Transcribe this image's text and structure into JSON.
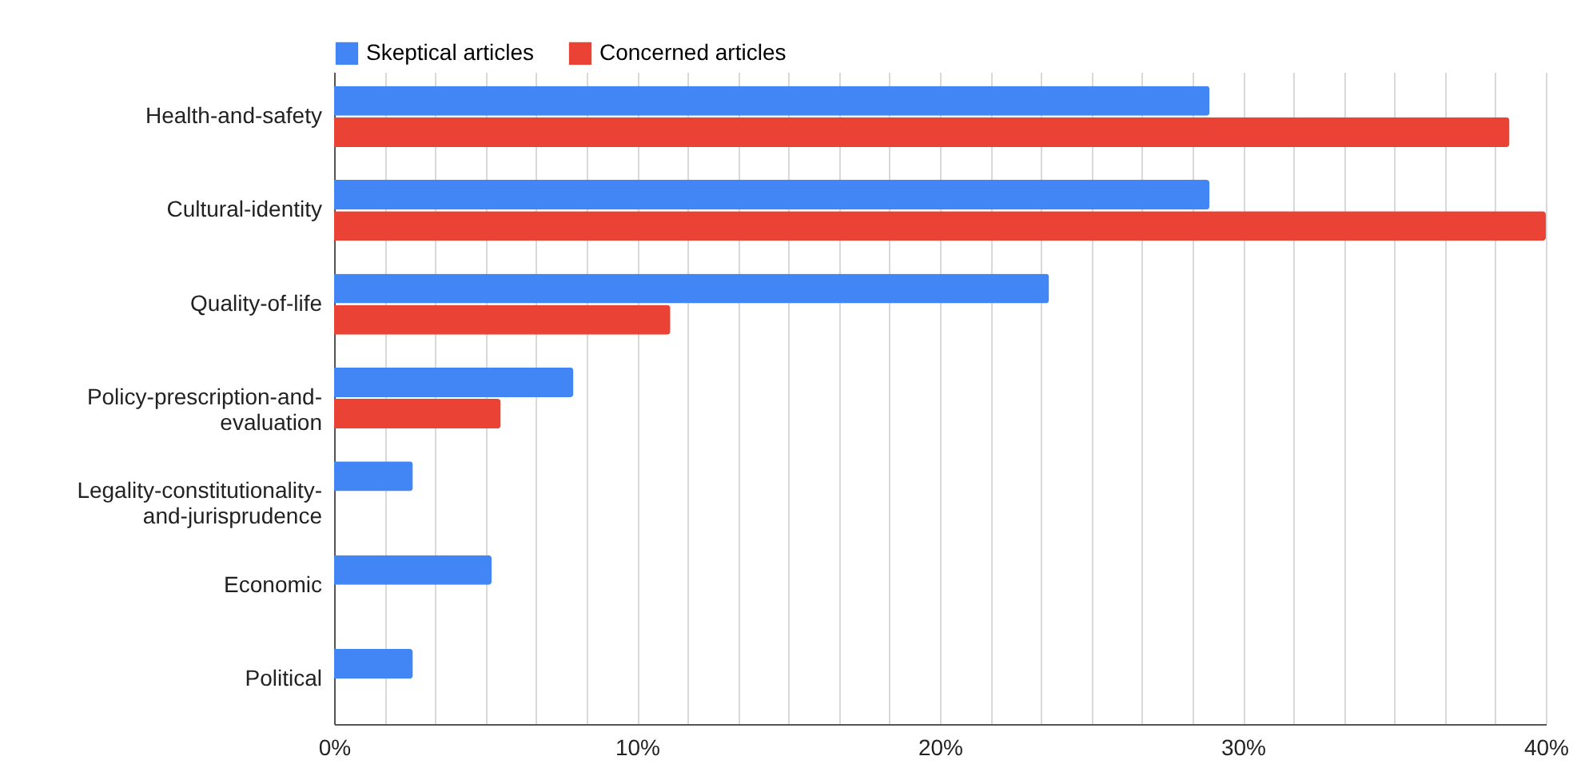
{
  "chart_data": {
    "type": "bar",
    "orientation": "horizontal",
    "categories": [
      "Health-and-safety",
      "Cultural-identity",
      "Quality-of-life",
      "Policy-prescription-and-evaluation",
      "Legality-constitutionality-and-jurisprudence",
      "Economic",
      "Political"
    ],
    "series": [
      {
        "name": "Skeptical articles",
        "color": "#4285f4",
        "values": [
          28.9,
          28.9,
          23.6,
          7.9,
          2.6,
          5.2,
          2.6
        ]
      },
      {
        "name": "Concerned articles",
        "color": "#ea4335",
        "values": [
          38.8,
          40,
          11.1,
          5.5,
          null,
          null,
          null
        ]
      }
    ],
    "xlim": [
      0,
      40
    ],
    "xticks": [
      {
        "value": 0,
        "label": "0%"
      },
      {
        "value": 1.667,
        "label": null
      },
      {
        "value": 3.333,
        "label": null
      },
      {
        "value": 5,
        "label": null
      },
      {
        "value": 6.667,
        "label": null
      },
      {
        "value": 8.333,
        "label": null
      },
      {
        "value": 10,
        "label": "10%"
      },
      {
        "value": 11.667,
        "label": null
      },
      {
        "value": 13.333,
        "label": null
      },
      {
        "value": 15,
        "label": null
      },
      {
        "value": 16.667,
        "label": null
      },
      {
        "value": 18.333,
        "label": null
      },
      {
        "value": 20,
        "label": "20%"
      },
      {
        "value": 21.667,
        "label": null
      },
      {
        "value": 23.333,
        "label": null
      },
      {
        "value": 25,
        "label": null
      },
      {
        "value": 26.667,
        "label": null
      },
      {
        "value": 28.333,
        "label": null
      },
      {
        "value": 30,
        "label": "30%"
      },
      {
        "value": 31.667,
        "label": null
      },
      {
        "value": 33.333,
        "label": null
      },
      {
        "value": 35,
        "label": null
      },
      {
        "value": 36.667,
        "label": null
      },
      {
        "value": 38.333,
        "label": null
      },
      {
        "value": 40,
        "label": "40%"
      }
    ],
    "grid": "x",
    "legend": "top"
  }
}
